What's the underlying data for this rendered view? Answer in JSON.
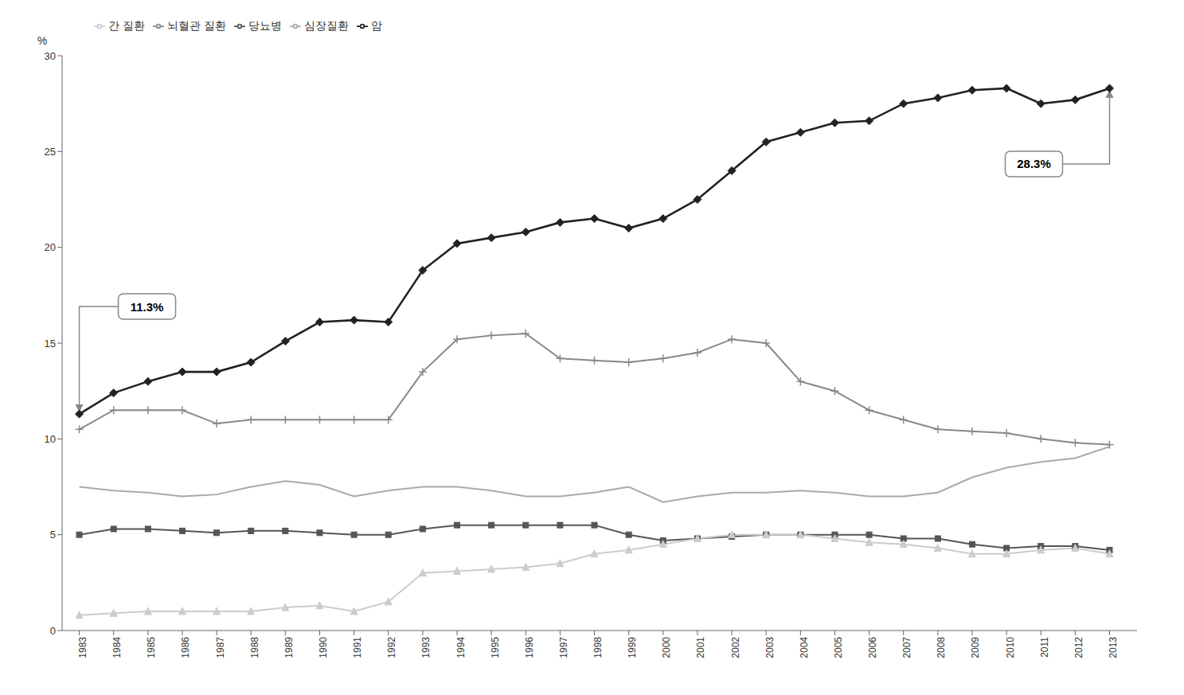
{
  "chart_data": {
    "type": "line",
    "x": [
      1983,
      1984,
      1985,
      1986,
      1987,
      1988,
      1989,
      1990,
      1991,
      1992,
      1993,
      1994,
      1995,
      1996,
      1997,
      1998,
      1999,
      2000,
      2001,
      2002,
      2003,
      2004,
      2005,
      2006,
      2007,
      2008,
      2009,
      2010,
      2011,
      2012,
      2013
    ],
    "series": [
      {
        "name": "암",
        "color": "#222222",
        "marker": "diamond",
        "values": [
          11.3,
          12.4,
          13.0,
          13.5,
          13.5,
          14.0,
          15.1,
          16.1,
          16.2,
          16.1,
          18.8,
          20.2,
          20.5,
          20.8,
          21.3,
          21.5,
          21.0,
          21.5,
          22.5,
          24.0,
          25.5,
          26.0,
          26.5,
          26.6,
          27.5,
          27.8,
          28.2,
          28.3,
          27.5,
          27.7,
          28.3
        ]
      },
      {
        "name": "뇌혈관 질환",
        "color": "#888888",
        "marker": "plus",
        "values": [
          10.5,
          11.5,
          11.5,
          11.5,
          10.8,
          11.0,
          11.0,
          11.0,
          11.0,
          11.0,
          13.5,
          15.2,
          15.4,
          15.5,
          14.2,
          14.1,
          14.0,
          14.2,
          14.5,
          15.2,
          15.0,
          13.0,
          12.5,
          11.5,
          11.0,
          10.5,
          10.4,
          10.3,
          10.0,
          9.8,
          9.7
        ]
      },
      {
        "name": "심장질환",
        "color": "#aaaaaa",
        "marker": "none",
        "values": [
          7.5,
          7.3,
          7.2,
          7.0,
          7.1,
          7.5,
          7.8,
          7.6,
          7.0,
          7.3,
          7.5,
          7.5,
          7.3,
          7.0,
          7.0,
          7.2,
          7.5,
          6.7,
          7.0,
          7.2,
          7.2,
          7.3,
          7.2,
          7.0,
          7.0,
          7.2,
          8.0,
          8.5,
          8.8,
          9.0,
          9.6
        ]
      },
      {
        "name": "당뇨병",
        "color": "#555555",
        "marker": "square",
        "values": [
          5.0,
          5.3,
          5.3,
          5.2,
          5.1,
          5.2,
          5.2,
          5.1,
          5.0,
          5.0,
          5.3,
          5.5,
          5.5,
          5.5,
          5.5,
          5.5,
          5.0,
          4.7,
          4.8,
          4.9,
          5.0,
          5.0,
          5.0,
          5.0,
          4.8,
          4.8,
          4.5,
          4.3,
          4.4,
          4.4,
          4.2
        ]
      },
      {
        "name": "간 질환",
        "color": "#cccccc",
        "marker": "triangle",
        "values": [
          0.8,
          0.9,
          1.0,
          1.0,
          1.0,
          1.0,
          1.2,
          1.3,
          1.0,
          1.5,
          3.0,
          3.1,
          3.2,
          3.3,
          3.5,
          4.0,
          4.2,
          4.5,
          4.8,
          5.0,
          5.0,
          5.0,
          4.8,
          4.6,
          4.5,
          4.3,
          4.0,
          4.0,
          4.2,
          4.3,
          4.0
        ]
      }
    ],
    "xlim": [
      1982.5,
      2013.8
    ],
    "xticks": [
      1983,
      1984,
      1985,
      1986,
      1987,
      1988,
      1989,
      1990,
      1991,
      1992,
      1993,
      1994,
      1995,
      1996,
      1997,
      1998,
      1999,
      2000,
      2001,
      2002,
      2003,
      2004,
      2005,
      2006,
      2007,
      2008,
      2009,
      2010,
      2011,
      2012,
      2013
    ],
    "ylim": [
      0,
      30
    ],
    "yticks": [
      0,
      5,
      10,
      15,
      20,
      25,
      30
    ],
    "y_label": "%",
    "legend": "upper left",
    "grid": false,
    "line_style": "solid",
    "annotations": [
      {
        "text": "11.3%",
        "x": 1983,
        "y": 11.3
      },
      {
        "text": "28.3%",
        "x": 2013,
        "y": 28.3
      }
    ]
  }
}
